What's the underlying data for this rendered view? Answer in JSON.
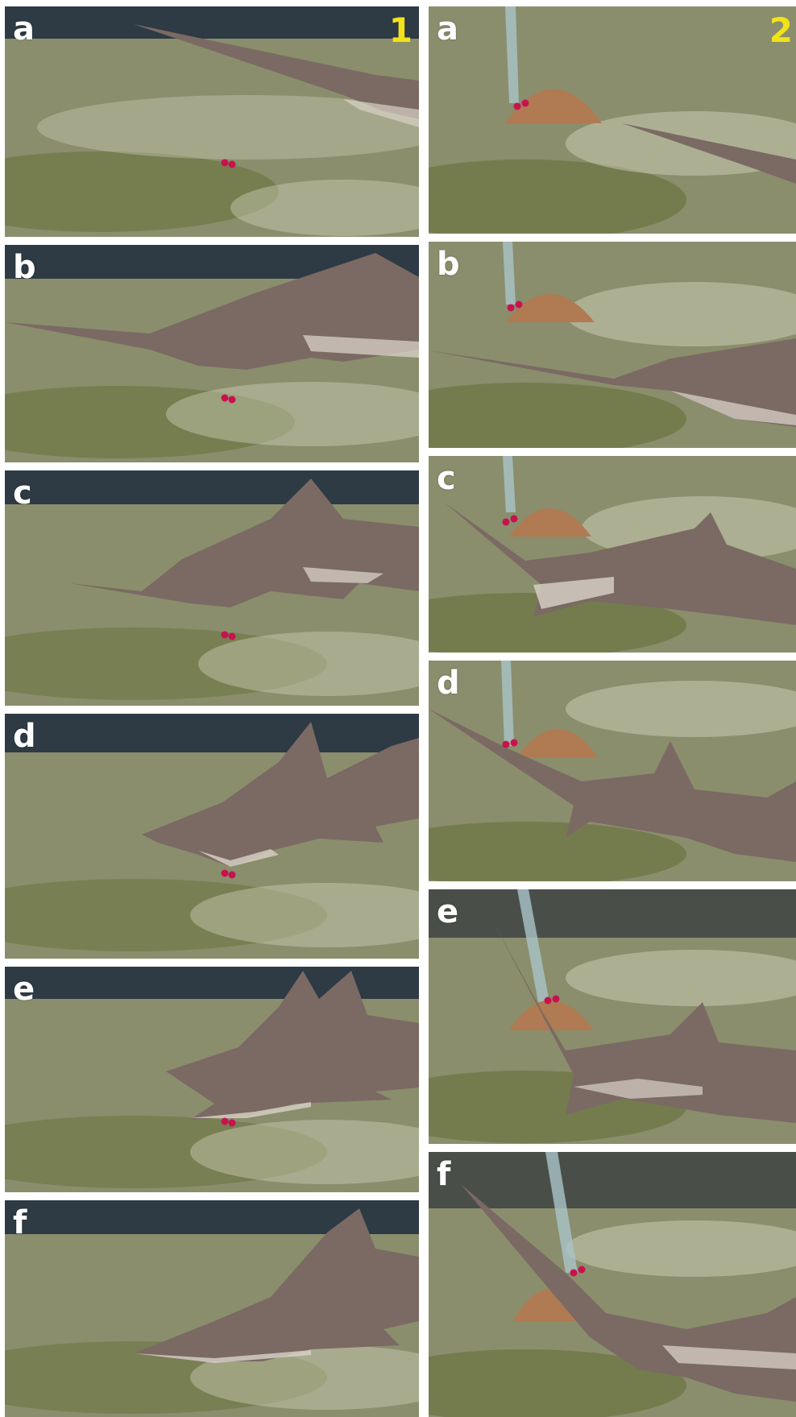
{
  "columns": [
    {
      "number": "1",
      "panels": [
        {
          "letter": "a",
          "scene": "tank-dots"
        },
        {
          "letter": "b",
          "scene": "tank-dots"
        },
        {
          "letter": "c",
          "scene": "tank-dots"
        },
        {
          "letter": "d",
          "scene": "tank-dots"
        },
        {
          "letter": "e",
          "scene": "tank-dots"
        },
        {
          "letter": "f",
          "scene": "tank"
        }
      ]
    },
    {
      "number": "2",
      "panels": [
        {
          "letter": "a",
          "scene": "tank-tube-dome-dots"
        },
        {
          "letter": "b",
          "scene": "tank-tube-dome-dots"
        },
        {
          "letter": "c",
          "scene": "tank-tube-dome-dots"
        },
        {
          "letter": "d",
          "scene": "tank-tube-dome-dots"
        },
        {
          "letter": "e",
          "scene": "tank-tube-dome-dots"
        },
        {
          "letter": "f",
          "scene": "tank-tube-dome-dots"
        }
      ]
    }
  ],
  "colors": {
    "tank_wall": "#2e3a44",
    "tank_floor": "#8a8e6c",
    "sand_light": "#d8d6c4",
    "algae": "#5d6a2e",
    "sawfish": "#7a6a63",
    "sawfish_belly": "#d9d2c8",
    "marker_dots": "#c8124e",
    "dome": "#b07a52",
    "tube": "#a9c4c9",
    "label_text": "#ffffff",
    "column_number": "#f2e21a"
  }
}
